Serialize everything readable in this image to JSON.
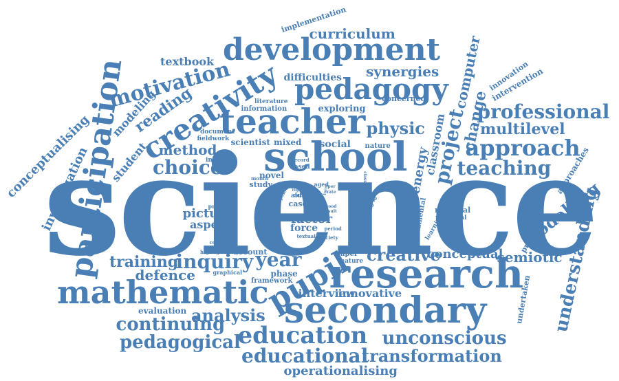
{
  "colors": {
    "word": "#4a7fb5",
    "background": "#ffffff"
  },
  "words": {
    "science": "science",
    "research": "research",
    "secondary": "secondary",
    "mathematic": "mathematic",
    "development": "development",
    "school": "school",
    "teacher": "teacher",
    "pedagogy": "pedagogy",
    "creativity": "creativity",
    "participation": "participation",
    "pupil": "pupil",
    "education": "education",
    "educational": "educational",
    "unconscious": "unconscious",
    "transformation": "transformation",
    "professional": "professional",
    "approach": "approach",
    "teaching": "teaching",
    "multilevel": "multilevel",
    "understanding": "understanding",
    "modelling": "modelling",
    "choice": "choice",
    "motivation": "motivation",
    "curriculum": "curriculum",
    "synergies": "synergies",
    "physic": "physic",
    "project": "project",
    "change": "change",
    "computer": "computer",
    "inquiry": "inquiry",
    "year": "year",
    "creative": "creative",
    "conceptual": "conceptual",
    "semiotic": "semiotic",
    "training": "training",
    "defence": "defence",
    "continuing": "continuing",
    "pedagogical": "pedagogical",
    "analysis": "analysis",
    "interview": "interview",
    "innovative": "innovative",
    "operationalising": "operationalising",
    "method": "method",
    "textbook": "textbook",
    "reading": "reading",
    "difficulties": "difficulties",
    "conceptualising": "conceptualising",
    "investigation": "investigation",
    "student": "student",
    "modeling": "modeling",
    "energy": "energy",
    "classroom": "classroom",
    "picture": "picture",
    "aspect": "aspect",
    "factor": "factor",
    "force": "force",
    "social": "social",
    "scientist": "scientist",
    "mixed": "mixed",
    "exploring": "exploring",
    "implementation": "implementation",
    "innovation": "innovation",
    "intervention": "intervention",
    "approaches": "approaches",
    "processes": "processes",
    "undertaken": "undertaken",
    "evaluation": "evaluation",
    "phase": "phase",
    "framework": "framework",
    "novel": "novel",
    "study": "study",
    "fundamental": "fundamental",
    "material": "material",
    "potential": "potential",
    "learning": "learning",
    "existence": "existence",
    "account": "account",
    "concerned": "concerned",
    "information": "information",
    "literature": "literature",
    "document": "document",
    "fieldwork": "fieldwork",
    "inform": "inform",
    "record": "record",
    "based": "based",
    "month": "month",
    "nature": "nature",
    "primary": "primary",
    "countric": "countric",
    "highlight": "highlight",
    "graphical": "graphical",
    "paper": "paper",
    "feature": "feature",
    "textual": "textual",
    "society": "society",
    "period": "period",
    "case": "case",
    "aid": "aid",
    "data": "data",
    "aged": "aged",
    "classes": "classes",
    "group": "group",
    "ideal": "ideal",
    "episode": "episode",
    "image": "image",
    "rate": "rate",
    "result": "result",
    "right": "right",
    "good": "good",
    "actual": "actual",
    "form": "form",
    "per": "per"
  }
}
